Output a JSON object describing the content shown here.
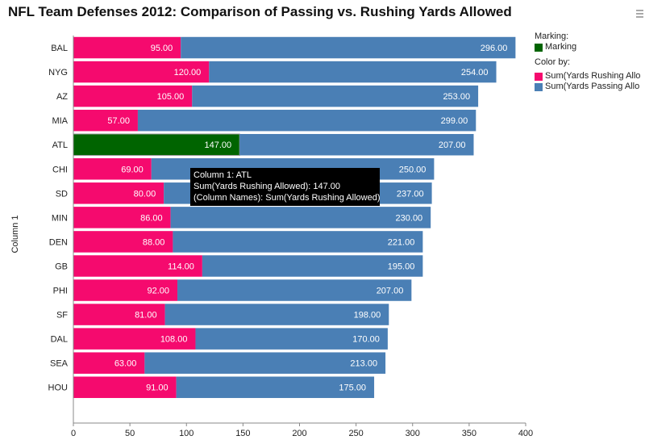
{
  "title": "NFL Team Defenses 2012: Comparison of Passing vs. Rushing Yards Allowed",
  "legend": {
    "marking_header": "Marking:",
    "marking_label": "Marking",
    "marking_color": "#006400",
    "color_header": "Color by:",
    "items": [
      {
        "label": "Sum(Yards Rushing Allo",
        "color": "#f50a6e"
      },
      {
        "label": "Sum(Yards Passing Allo",
        "color": "#4a7fb5"
      }
    ]
  },
  "tooltip": {
    "line1": "Column 1: ATL",
    "line2": "Sum(Yards Rushing Allowed): 147.00",
    "line3": "(Column Names): Sum(Yards Rushing Allowed)"
  },
  "icons": {
    "menu": "menu-icon"
  },
  "chart_data": {
    "type": "bar",
    "orientation": "horizontal",
    "stacked": true,
    "ylabel": "Column 1",
    "xlim": [
      0,
      400
    ],
    "x_ticks": [
      "0",
      "50",
      "100",
      "150",
      "200",
      "250",
      "300",
      "350",
      "400"
    ],
    "categories": [
      "BAL",
      "NYG",
      "AZ",
      "MIA",
      "ATL",
      "CHI",
      "SD",
      "MIN",
      "DEN",
      "GB",
      "PHI",
      "SF",
      "DAL",
      "SEA",
      "HOU"
    ],
    "series": [
      {
        "name": "Sum(Yards Rushing Allo",
        "color": "#f50a6e",
        "values": [
          95,
          120,
          105,
          57,
          147,
          69,
          80,
          86,
          88,
          114,
          92,
          81,
          108,
          63,
          91
        ],
        "labels": [
          "95.00",
          "120.00",
          "105.00",
          "57.00",
          "147.00",
          "69.00",
          "80.00",
          "86.00",
          "88.00",
          "114.00",
          "92.00",
          "81.00",
          "108.00",
          "63.00",
          "91.00"
        ]
      },
      {
        "name": "Sum(Yards Passing Allo",
        "color": "#4a7fb5",
        "values": [
          296,
          254,
          253,
          299,
          207,
          250,
          237,
          230,
          221,
          195,
          207,
          198,
          170,
          213,
          175
        ],
        "labels": [
          "296.00",
          "254.00",
          "253.00",
          "299.00",
          "207.00",
          "250.00",
          "237.00",
          "230.00",
          "221.00",
          "195.00",
          "207.00",
          "198.00",
          "170.00",
          "213.00",
          "175.00"
        ]
      }
    ],
    "marked": {
      "category": "ATL",
      "series": 0,
      "color": "#006400"
    },
    "grid": false
  }
}
